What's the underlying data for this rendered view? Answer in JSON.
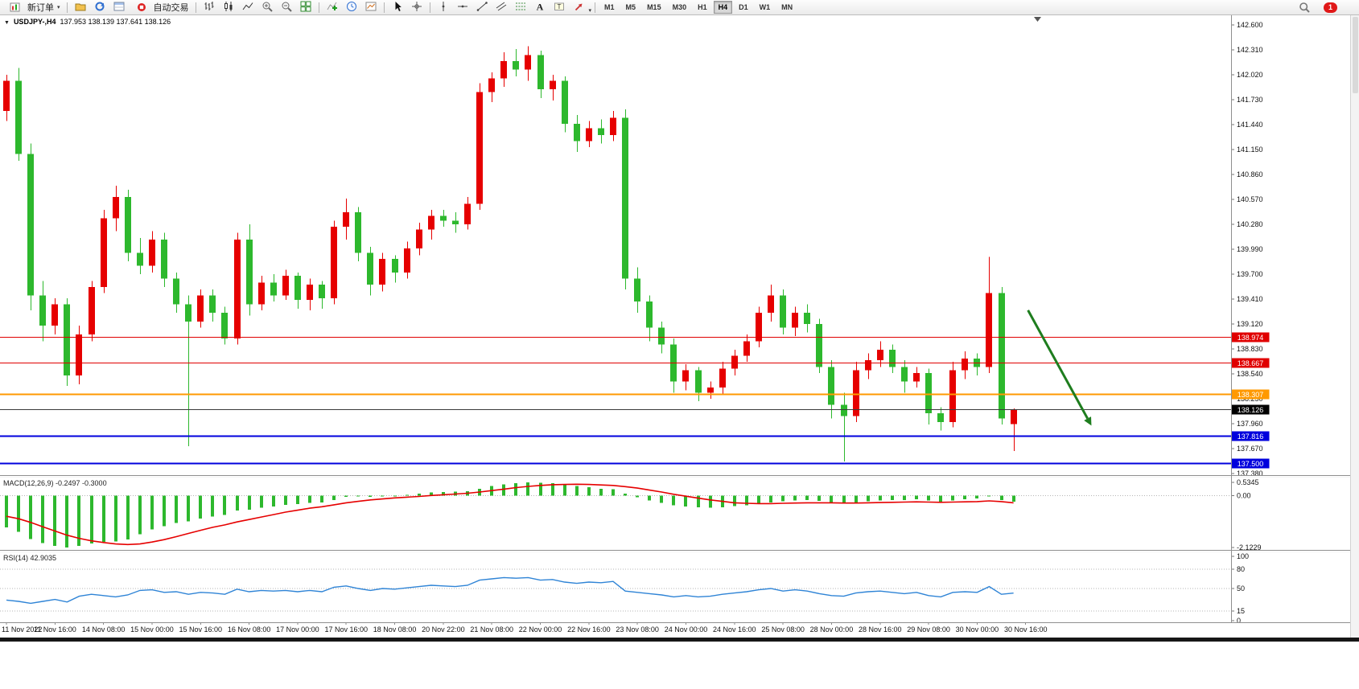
{
  "toolbar": {
    "new_order_label": "新订单",
    "autotrade_label": "自动交易",
    "left_icons": [
      "profiles-icon",
      "refresh-icon",
      "data-window-icon"
    ],
    "chart_type_icons": [
      "bars-chart-icon",
      "candlestick-chart-icon",
      "line-chart-icon",
      "zoom-in-icon",
      "zoom-out-icon",
      "tile-windows-icon"
    ],
    "tool_icons": [
      "indicators-icon",
      "periods-icon",
      "templates-icon"
    ],
    "cursor_icons": [
      "cursor-icon",
      "crosshair-icon"
    ],
    "draw_icons": [
      "vertical-line-icon",
      "horizontal-line-icon",
      "trendline-icon",
      "equidistant-channel-icon",
      "fibonacci-icon",
      "text-icon",
      "text-label-icon",
      "arrow-objects-icon"
    ],
    "timeframes": [
      "M1",
      "M5",
      "M15",
      "M30",
      "H1",
      "H4",
      "D1",
      "W1",
      "MN"
    ],
    "active_timeframe": "H4",
    "notification_count": "1"
  },
  "chart": {
    "title_symbol": "USDJPY-,H4",
    "title_ohlc": "137.953 138.139 137.641 138.126",
    "symbol": "USDJPY-",
    "period": "H4",
    "last_open": "137.953",
    "last_high": "138.139",
    "last_low": "137.641",
    "last_close": "138.126"
  },
  "chart_data": {
    "type": "candlestick",
    "title": "USDJPY- H4",
    "up_color": "#e60000",
    "down_color": "#2db82d",
    "price_axis": {
      "min": 137.38,
      "max": 142.6,
      "tick_step": 0.29,
      "labels": [
        "142.600",
        "142.310",
        "142.020",
        "141.730",
        "141.440",
        "141.150",
        "140.860",
        "140.570",
        "140.280",
        "139.990",
        "139.700",
        "139.410",
        "139.120",
        "138.830",
        "138.540",
        "138.250",
        "137.960",
        "137.670",
        "137.380"
      ]
    },
    "x_labels": [
      "11 Nov 2022",
      "11 Nov 16:00",
      "14 Nov 08:00",
      "15 Nov 00:00",
      "15 Nov 16:00",
      "16 Nov 08:00",
      "17 Nov 00:00",
      "17 Nov 16:00",
      "18 Nov 08:00",
      "20 Nov 22:00",
      "21 Nov 08:00",
      "22 Nov 00:00",
      "22 Nov 16:00",
      "23 Nov 08:00",
      "24 Nov 00:00",
      "24 Nov 16:00",
      "25 Nov 08:00",
      "28 Nov 00:00",
      "28 Nov 16:00",
      "29 Nov 08:00",
      "30 Nov 00:00",
      "30 Nov 16:00"
    ],
    "candles": [
      [
        141.6,
        142.02,
        141.48,
        141.95
      ],
      [
        141.95,
        142.1,
        141.02,
        141.1
      ],
      [
        141.1,
        141.22,
        139.28,
        139.45
      ],
      [
        139.45,
        139.62,
        138.92,
        139.1
      ],
      [
        139.1,
        139.42,
        139.0,
        139.35
      ],
      [
        139.35,
        139.42,
        138.4,
        138.52
      ],
      [
        138.52,
        139.1,
        138.42,
        139.0
      ],
      [
        139.0,
        139.62,
        138.92,
        139.55
      ],
      [
        139.55,
        140.45,
        139.48,
        140.35
      ],
      [
        140.35,
        140.73,
        140.2,
        140.6
      ],
      [
        140.6,
        140.68,
        139.85,
        139.95
      ],
      [
        139.95,
        140.12,
        139.7,
        139.8
      ],
      [
        139.8,
        140.2,
        139.72,
        140.1
      ],
      [
        140.1,
        140.18,
        139.55,
        139.65
      ],
      [
        139.65,
        139.72,
        139.25,
        139.35
      ],
      [
        139.35,
        139.45,
        137.7,
        139.15
      ],
      [
        139.15,
        139.52,
        139.08,
        139.45
      ],
      [
        139.45,
        139.52,
        139.15,
        139.25
      ],
      [
        139.25,
        139.32,
        138.88,
        138.95
      ],
      [
        138.95,
        140.18,
        138.88,
        140.1
      ],
      [
        140.1,
        140.28,
        139.22,
        139.35
      ],
      [
        139.35,
        139.68,
        139.28,
        139.6
      ],
      [
        139.6,
        139.7,
        139.38,
        139.45
      ],
      [
        139.45,
        139.75,
        139.4,
        139.68
      ],
      [
        139.68,
        139.72,
        139.3,
        139.4
      ],
      [
        139.4,
        139.65,
        139.28,
        139.58
      ],
      [
        139.58,
        139.62,
        139.3,
        139.42
      ],
      [
        139.42,
        140.32,
        139.35,
        140.25
      ],
      [
        140.25,
        140.58,
        140.1,
        140.42
      ],
      [
        140.42,
        140.48,
        139.85,
        139.95
      ],
      [
        139.95,
        140.02,
        139.45,
        139.58
      ],
      [
        139.58,
        139.95,
        139.5,
        139.88
      ],
      [
        139.88,
        139.92,
        139.6,
        139.72
      ],
      [
        139.72,
        140.08,
        139.65,
        140.0
      ],
      [
        140.0,
        140.3,
        139.92,
        140.22
      ],
      [
        140.22,
        140.45,
        140.1,
        140.38
      ],
      [
        140.38,
        140.45,
        140.25,
        140.32
      ],
      [
        140.32,
        140.42,
        140.18,
        140.28
      ],
      [
        140.28,
        140.6,
        140.22,
        140.52
      ],
      [
        140.52,
        141.92,
        140.45,
        141.82
      ],
      [
        141.82,
        142.05,
        141.7,
        141.98
      ],
      [
        141.98,
        142.28,
        141.88,
        142.18
      ],
      [
        142.18,
        142.32,
        142.0,
        142.08
      ],
      [
        142.08,
        142.35,
        141.95,
        142.25
      ],
      [
        142.25,
        142.3,
        141.75,
        141.85
      ],
      [
        141.85,
        142.02,
        141.72,
        141.95
      ],
      [
        141.95,
        142.0,
        141.35,
        141.45
      ],
      [
        141.45,
        141.55,
        141.12,
        141.25
      ],
      [
        141.25,
        141.48,
        141.18,
        141.4
      ],
      [
        141.4,
        141.5,
        141.22,
        141.32
      ],
      [
        141.32,
        141.6,
        141.25,
        141.52
      ],
      [
        141.52,
        141.62,
        139.52,
        139.65
      ],
      [
        139.65,
        139.78,
        139.25,
        139.38
      ],
      [
        139.38,
        139.45,
        138.92,
        139.08
      ],
      [
        139.08,
        139.15,
        138.78,
        138.88
      ],
      [
        138.88,
        138.95,
        138.32,
        138.45
      ],
      [
        138.45,
        138.65,
        138.35,
        138.58
      ],
      [
        138.58,
        138.62,
        138.22,
        138.32
      ],
      [
        138.32,
        138.45,
        138.25,
        138.38
      ],
      [
        138.38,
        138.68,
        138.3,
        138.6
      ],
      [
        138.6,
        138.82,
        138.52,
        138.75
      ],
      [
        138.75,
        139.0,
        138.68,
        138.92
      ],
      [
        138.92,
        139.32,
        138.85,
        139.25
      ],
      [
        139.25,
        139.58,
        139.15,
        139.45
      ],
      [
        139.45,
        139.52,
        139.0,
        139.08
      ],
      [
        139.08,
        139.32,
        138.98,
        139.25
      ],
      [
        139.25,
        139.35,
        139.02,
        139.12
      ],
      [
        139.12,
        139.18,
        138.55,
        138.62
      ],
      [
        138.62,
        138.7,
        138.02,
        138.18
      ],
      [
        138.18,
        138.32,
        137.52,
        138.05
      ],
      [
        138.05,
        138.68,
        137.98,
        138.58
      ],
      [
        138.58,
        138.78,
        138.48,
        138.7
      ],
      [
        138.7,
        138.92,
        138.62,
        138.82
      ],
      [
        138.82,
        138.88,
        138.55,
        138.62
      ],
      [
        138.62,
        138.7,
        138.32,
        138.45
      ],
      [
        138.45,
        138.62,
        138.38,
        138.55
      ],
      [
        138.55,
        138.6,
        137.95,
        138.08
      ],
      [
        138.08,
        138.15,
        137.88,
        137.98
      ],
      [
        137.98,
        138.68,
        137.92,
        138.58
      ],
      [
        138.58,
        138.8,
        138.48,
        138.72
      ],
      [
        138.72,
        138.78,
        138.52,
        138.62
      ],
      [
        138.62,
        139.9,
        138.55,
        139.48
      ],
      [
        139.48,
        139.55,
        137.95,
        138.02
      ],
      [
        137.953,
        138.139,
        137.641,
        138.126
      ]
    ],
    "hlines": [
      {
        "price": 138.974,
        "label": "138.974",
        "color": "#e00000",
        "width": 1
      },
      {
        "price": 138.667,
        "label": "138.667",
        "color": "#e00000",
        "width": 1
      },
      {
        "price": 138.307,
        "label": "138.307",
        "color": "#ff9900",
        "width": 2
      },
      {
        "price": 137.816,
        "label": "137.816",
        "color": "#0000dd",
        "width": 2
      },
      {
        "price": 137.5,
        "label": "137.500",
        "color": "#0000dd",
        "width": 2
      }
    ],
    "current_price": {
      "price": 138.126,
      "label": "138.126",
      "line_color": "#3a3a3a",
      "tag_color": "#000000"
    },
    "annotations": [
      {
        "type": "arrow",
        "price_from": 139.28,
        "price_to": 138.02,
        "color": "#1e7d1e"
      }
    ],
    "indicators": {
      "macd": {
        "name": "MACD(12,26,9)",
        "value_main": "-0.2497",
        "value_signal": "-0.3000",
        "axis_labels": [
          "0.5345",
          "0.00",
          "-2.1229"
        ],
        "max": 0.5345,
        "min": -2.1229,
        "hist_color": "#2db82d",
        "signal_color": "#e60000",
        "histogram": [
          -1.3,
          -1.48,
          -1.78,
          -1.95,
          -2.06,
          -2.12,
          -2.05,
          -1.96,
          -1.9,
          -1.87,
          -1.8,
          -1.58,
          -1.38,
          -1.25,
          -1.12,
          -1.05,
          -0.95,
          -0.86,
          -0.8,
          -0.62,
          -0.58,
          -0.5,
          -0.45,
          -0.38,
          -0.35,
          -0.3,
          -0.28,
          -0.18,
          -0.06,
          -0.03,
          -0.06,
          -0.03,
          -0.03,
          0.02,
          0.08,
          0.12,
          0.14,
          0.15,
          0.18,
          0.28,
          0.38,
          0.45,
          0.5,
          0.534,
          0.52,
          0.5,
          0.45,
          0.38,
          0.33,
          0.28,
          0.25,
          0.08,
          -0.08,
          -0.2,
          -0.3,
          -0.4,
          -0.45,
          -0.48,
          -0.5,
          -0.48,
          -0.44,
          -0.4,
          -0.34,
          -0.28,
          -0.24,
          -0.2,
          -0.18,
          -0.22,
          -0.28,
          -0.32,
          -0.28,
          -0.24,
          -0.2,
          -0.18,
          -0.18,
          -0.16,
          -0.2,
          -0.25,
          -0.2,
          -0.15,
          -0.12,
          0.0,
          -0.18,
          -0.2497
        ],
        "signal": [
          -0.85,
          -0.95,
          -1.1,
          -1.28,
          -1.45,
          -1.62,
          -1.75,
          -1.85,
          -1.92,
          -1.98,
          -2.0,
          -1.98,
          -1.9,
          -1.8,
          -1.68,
          -1.55,
          -1.42,
          -1.3,
          -1.2,
          -1.08,
          -0.98,
          -0.88,
          -0.78,
          -0.68,
          -0.6,
          -0.52,
          -0.46,
          -0.38,
          -0.3,
          -0.24,
          -0.18,
          -0.14,
          -0.1,
          -0.07,
          -0.04,
          0.0,
          0.03,
          0.06,
          0.09,
          0.14,
          0.2,
          0.26,
          0.32,
          0.37,
          0.41,
          0.44,
          0.45,
          0.46,
          0.45,
          0.43,
          0.41,
          0.36,
          0.3,
          0.22,
          0.14,
          0.05,
          -0.03,
          -0.11,
          -0.18,
          -0.24,
          -0.3,
          -0.32,
          -0.33,
          -0.33,
          -0.32,
          -0.31,
          -0.3,
          -0.3,
          -0.3,
          -0.31,
          -0.31,
          -0.3,
          -0.29,
          -0.28,
          -0.27,
          -0.26,
          -0.27,
          -0.28,
          -0.27,
          -0.26,
          -0.25,
          -0.22,
          -0.25,
          -0.3
        ]
      },
      "rsi": {
        "name": "RSI(14)",
        "value": "42.9035",
        "levels": [
          100,
          80,
          50,
          15,
          0
        ],
        "line_color": "#2f84d6",
        "values": [
          32,
          30,
          27,
          30,
          33,
          29,
          38,
          41,
          39,
          37,
          40,
          47,
          48,
          44,
          45,
          41,
          44,
          43,
          41,
          49,
          45,
          47,
          46,
          47,
          45,
          47,
          45,
          52,
          54,
          50,
          47,
          50,
          49,
          51,
          53,
          55,
          54,
          53,
          55,
          63,
          65,
          67,
          66,
          67,
          63,
          64,
          60,
          58,
          60,
          59,
          61,
          46,
          44,
          42,
          40,
          37,
          39,
          37,
          38,
          41,
          43,
          45,
          48,
          50,
          46,
          48,
          46,
          42,
          39,
          38,
          43,
          45,
          46,
          44,
          42,
          44,
          39,
          37,
          44,
          45,
          44,
          53,
          41,
          42.9
        ]
      }
    }
  }
}
